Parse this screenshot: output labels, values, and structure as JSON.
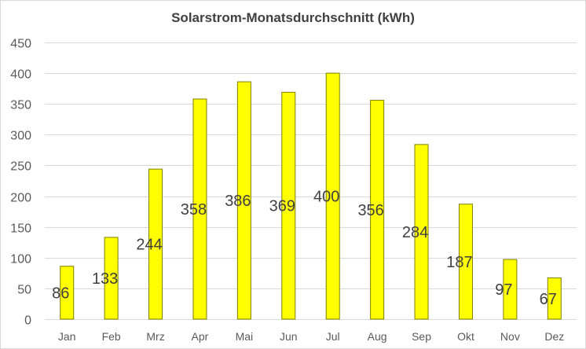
{
  "chart_data": {
    "type": "bar",
    "title": "Solarstrom-Monatsdurchschnitt (kWh)",
    "xlabel": "",
    "ylabel": "",
    "categories": [
      "Jan",
      "Feb",
      "Mrz",
      "Apr",
      "Mai",
      "Jun",
      "Jul",
      "Aug",
      "Sep",
      "Okt",
      "Nov",
      "Dez"
    ],
    "values": [
      86,
      133,
      244,
      358,
      386,
      369,
      400,
      356,
      284,
      187,
      97,
      67
    ],
    "ylim": [
      0,
      450
    ],
    "yticks": [
      0,
      50,
      100,
      150,
      200,
      250,
      300,
      350,
      400,
      450
    ],
    "grid": true,
    "legend": "none",
    "bar_fill": "#ffff00",
    "bar_stroke": "#7f7f00"
  }
}
